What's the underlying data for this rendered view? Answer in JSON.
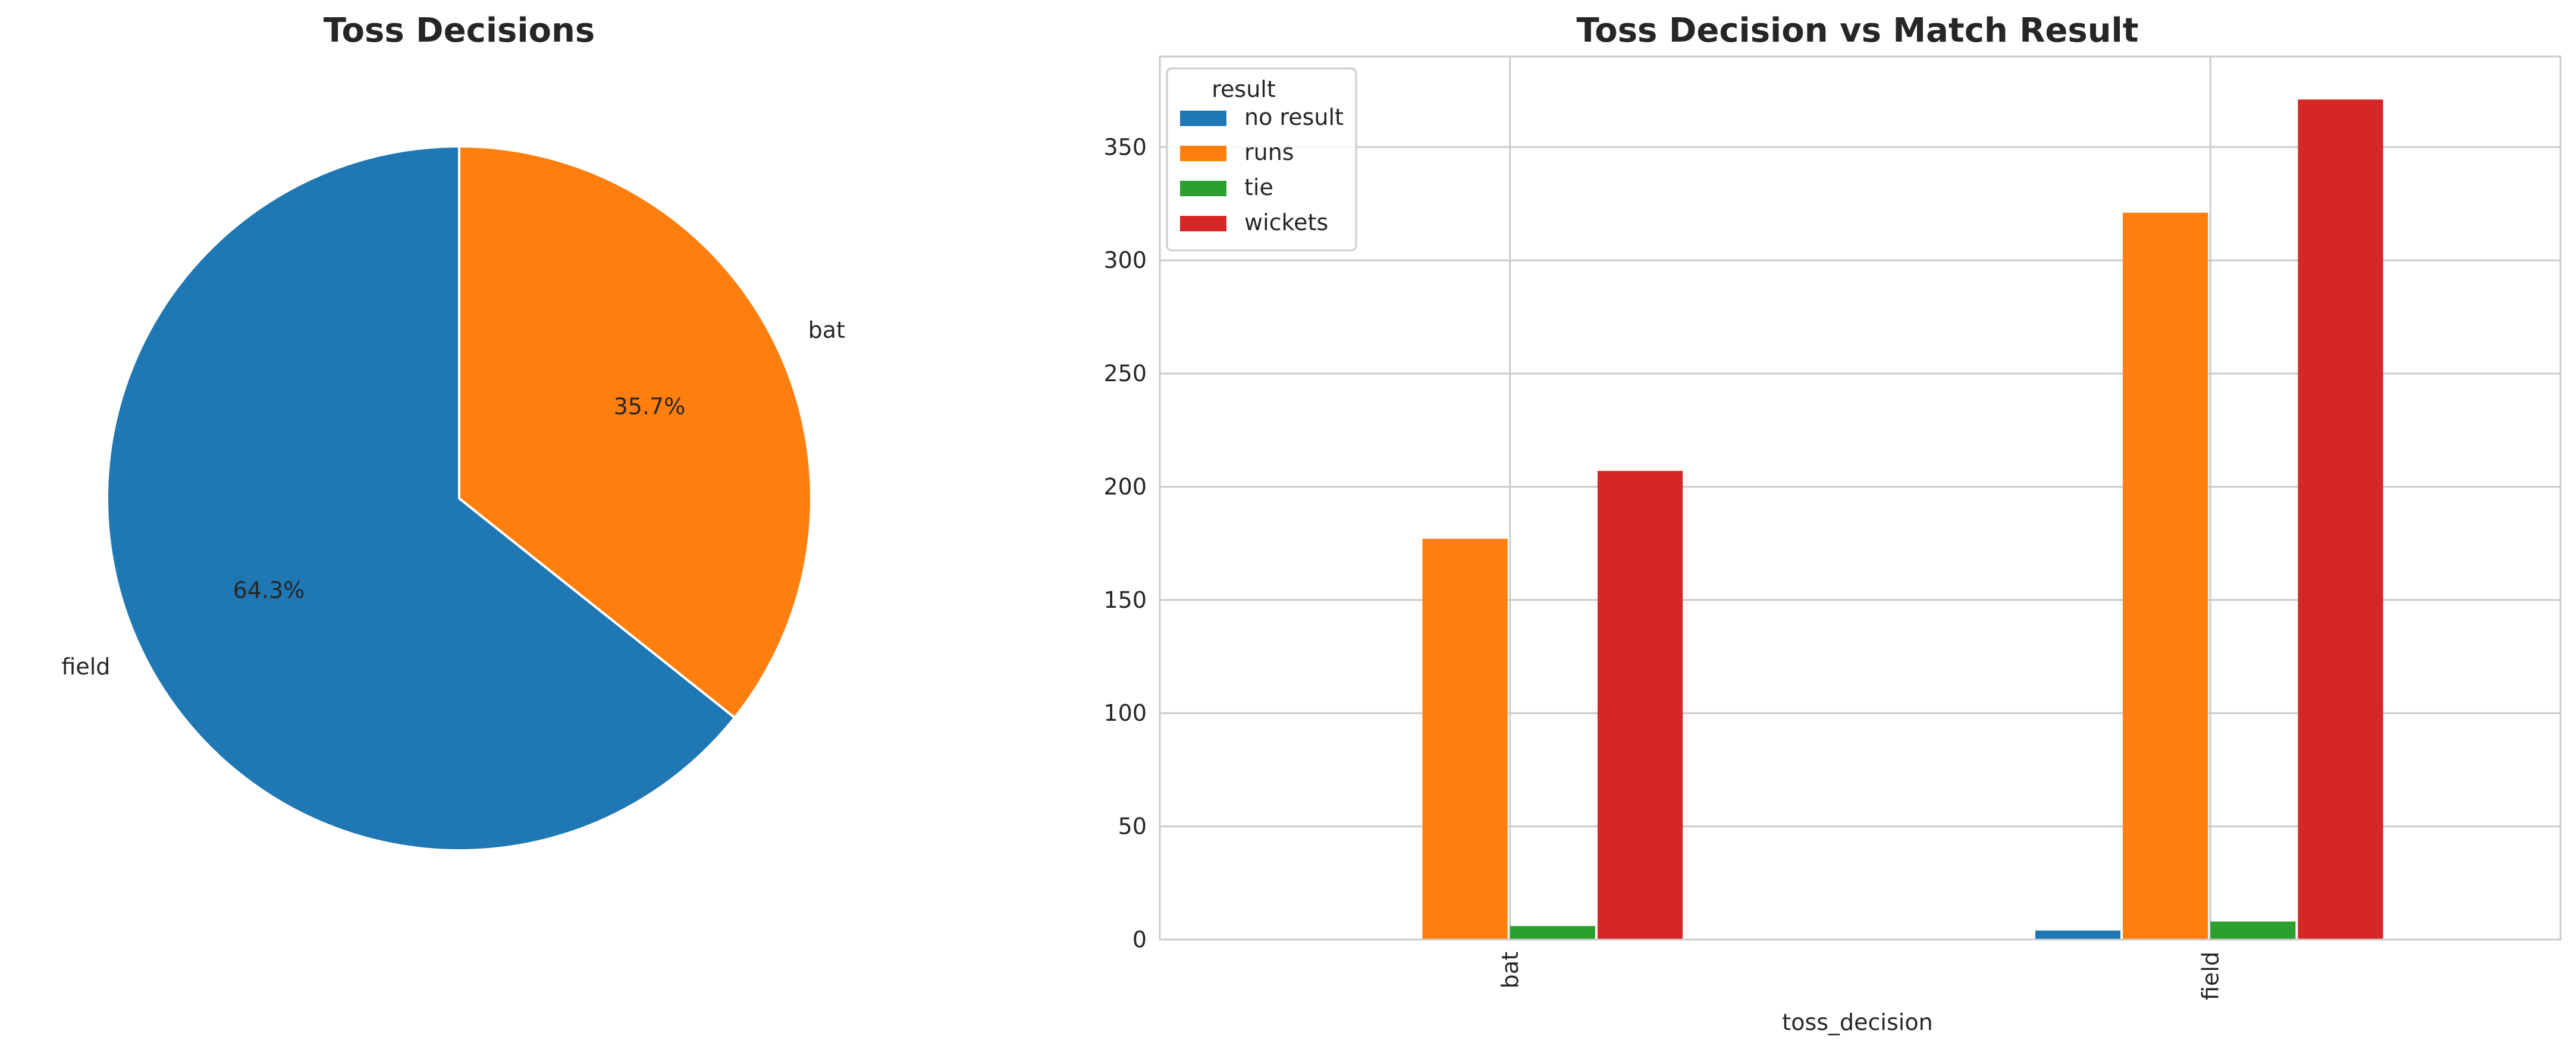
{
  "chart_data": [
    {
      "type": "pie",
      "title": "Toss Decisions",
      "labels": [
        "field",
        "bat"
      ],
      "values": [
        64.3,
        35.7
      ],
      "autopct_labels": [
        "64.3%",
        "35.7%"
      ],
      "colors": [
        "#1f77b4",
        "#ff7f0e"
      ],
      "start_angle_deg": 90,
      "counterclockwise": true
    },
    {
      "type": "bar",
      "title": "Toss Decision vs Match Result",
      "categories": [
        "bat",
        "field"
      ],
      "xlabel": "toss_decision",
      "ylabel": "",
      "ylim": [
        0,
        390
      ],
      "yticks": [
        0,
        50,
        100,
        150,
        200,
        250,
        300,
        350
      ],
      "grid": true,
      "legend": {
        "title": "result",
        "placement": "top-left"
      },
      "series": [
        {
          "name": "no result",
          "color": "#1f77b4",
          "values": [
            0,
            4
          ]
        },
        {
          "name": "runs",
          "color": "#ff7f0e",
          "values": [
            177,
            321
          ]
        },
        {
          "name": "tie",
          "color": "#2ca02c",
          "values": [
            6,
            8
          ]
        },
        {
          "name": "wickets",
          "color": "#d62728",
          "values": [
            207,
            371
          ]
        }
      ]
    }
  ]
}
